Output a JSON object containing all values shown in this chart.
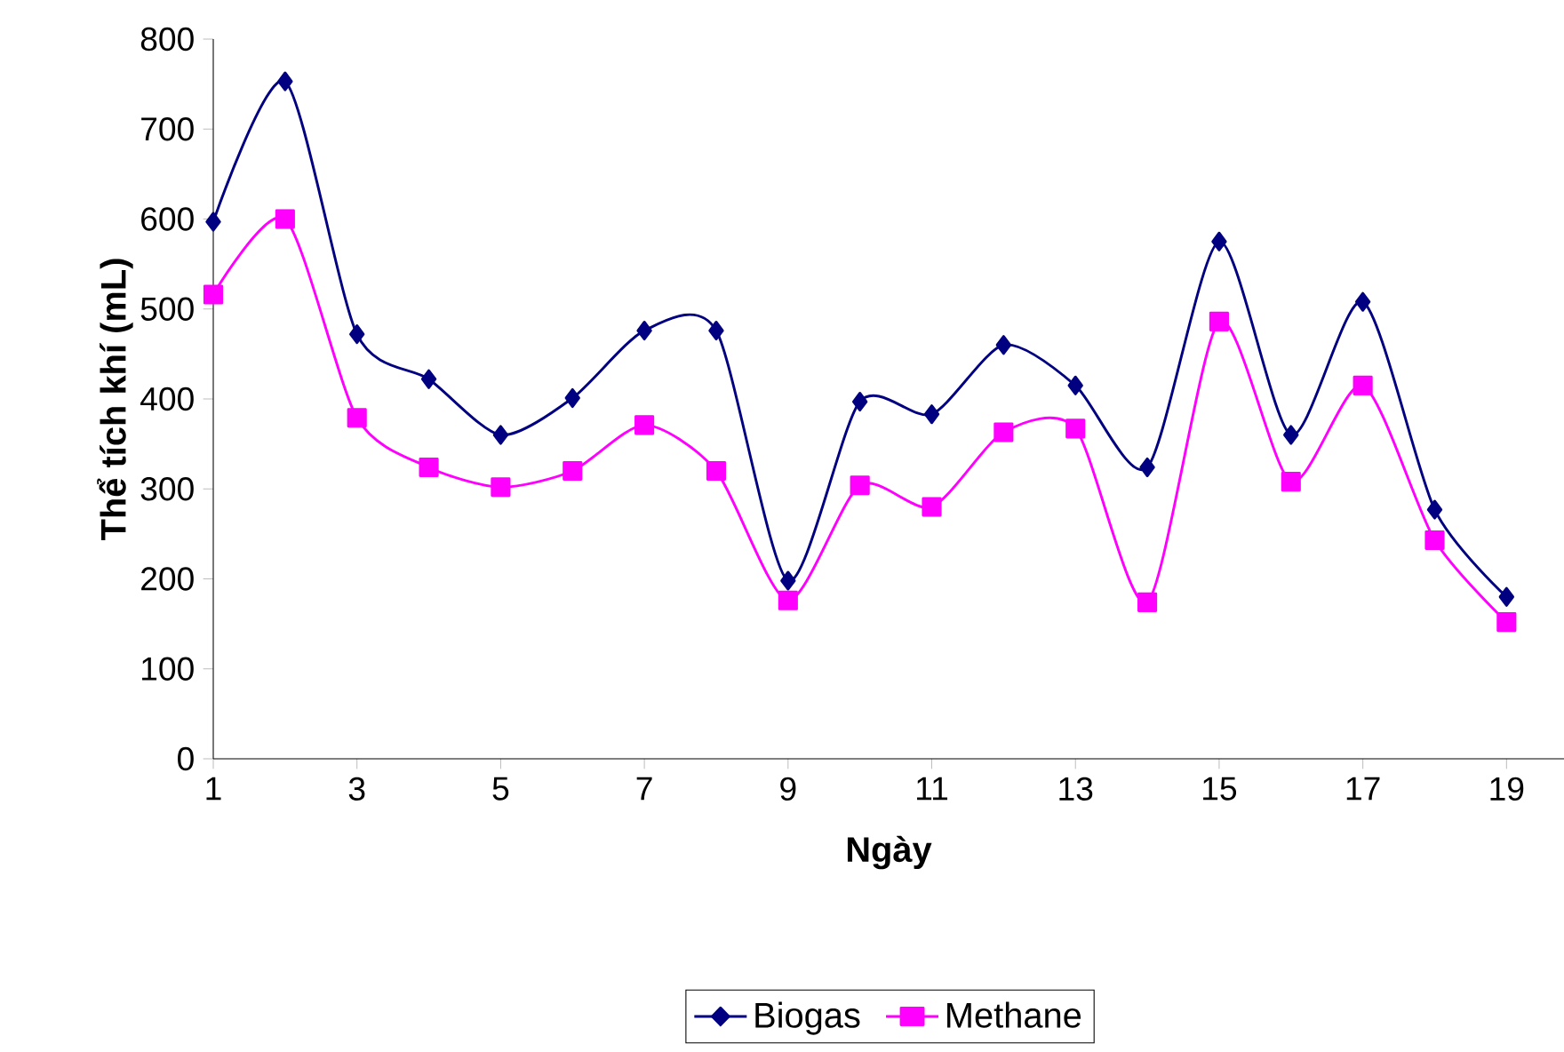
{
  "chart_data": {
    "type": "line",
    "xlabel": "Ngày",
    "ylabel": "Thể tích khí (mL)",
    "x": [
      1,
      2,
      3,
      4,
      5,
      6,
      7,
      8,
      9,
      10,
      11,
      12,
      13,
      14,
      15,
      16,
      17,
      18,
      19
    ],
    "series": [
      {
        "name": "Biogas",
        "color": "#000080",
        "marker": "diamond",
        "values": [
          597,
          753,
          472,
          422,
          360,
          401,
          476,
          476,
          198,
          397,
          383,
          460,
          415,
          324,
          575,
          360,
          508,
          277,
          180
        ]
      },
      {
        "name": "Methane",
        "color": "#ff00ff",
        "marker": "square",
        "values": [
          516,
          600,
          379,
          324,
          302,
          320,
          371,
          320,
          176,
          304,
          280,
          363,
          367,
          174,
          486,
          308,
          415,
          243,
          152
        ]
      }
    ],
    "xlim": [
      1,
      19.8
    ],
    "xticks": [
      1,
      3,
      5,
      7,
      9,
      11,
      13,
      15,
      17,
      19
    ],
    "ylim": [
      0,
      800
    ],
    "yticks": [
      0,
      100,
      200,
      300,
      400,
      500,
      600,
      700,
      800
    ],
    "legend": "bottom",
    "grid": false,
    "line_style": "solid"
  }
}
